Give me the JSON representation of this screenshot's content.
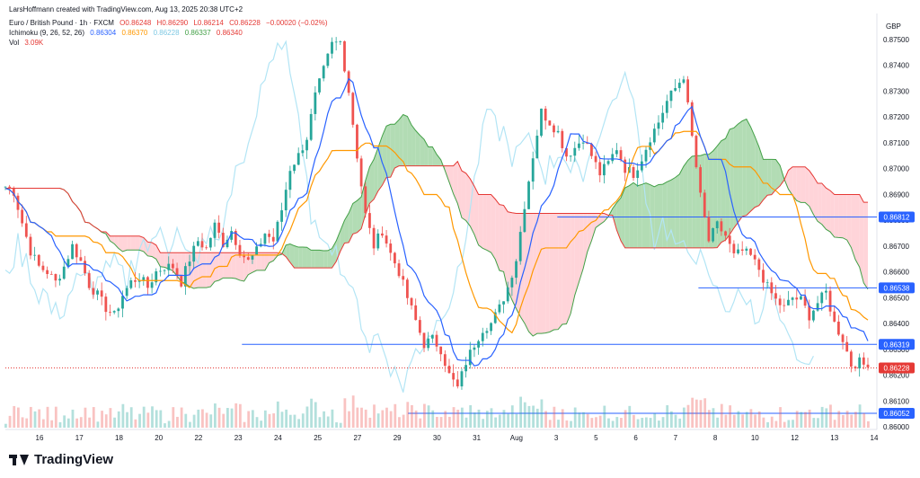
{
  "header": {
    "attribution": "LarsHoffmann created with TradingView.com, Aug 13, 2025 20:38 UTC+2"
  },
  "legend": {
    "symbol": "Euro / British Pound · 1h · FXCM",
    "ohlc": {
      "o": "O0.86248",
      "h": "H0.86290",
      "l": "L0.86214",
      "c": "C0.86228",
      "chg": "−0.00020 (−0.02%)"
    },
    "ichimoku": {
      "label": "Ichimoku (9, 26, 52, 26)",
      "v1": "0.86304",
      "v2": "0.86370",
      "v3": "0.86228",
      "v4": "0.86337",
      "v5": "0.86340"
    },
    "vol": {
      "label": "Vol",
      "value": "3.09K"
    }
  },
  "currency": "GBP",
  "footer": {
    "brand": "TradingView"
  },
  "colors": {
    "up": "#26a69a",
    "down": "#ef5350",
    "tenkan": "#2962ff",
    "kijun": "#ff9800",
    "chikou": "#b3e5f5",
    "spanA": "#43a047",
    "spanB": "#e53935",
    "cloud_up": "#a5d6a7",
    "cloud_down": "#ffcdd2",
    "hline": "#2962ff",
    "price_label": "#e53935"
  },
  "chart_data": {
    "type": "candlestick",
    "symbol": "EURGBP",
    "timeframe": "1h",
    "ylim": [
      0.86,
      0.876
    ],
    "y_ticks": [
      "0.87500",
      "0.87400",
      "0.87300",
      "0.87200",
      "0.87100",
      "0.87000",
      "0.86900",
      "0.86800",
      "0.86700",
      "0.86600",
      "0.86500",
      "0.86400",
      "0.86300",
      "0.86200",
      "0.86100",
      "0.86000"
    ],
    "x_ticks": [
      "16",
      "17",
      "18",
      "20",
      "22",
      "23",
      "24",
      "25",
      "27",
      "29",
      "30",
      "31",
      "Aug",
      "3",
      "5",
      "6",
      "7",
      "8",
      "10",
      "12",
      "13",
      "14"
    ],
    "horizontal_lines": [
      {
        "value": 0.86812,
        "label": "0.86812",
        "from_day_index": 13.3
      },
      {
        "value": 0.86538,
        "label": "0.86538",
        "from_day_index": 16.7
      },
      {
        "value": 0.86319,
        "label": "0.86319",
        "from_day_index": 5.7
      },
      {
        "value": 0.86052,
        "label": "0.86052",
        "from_day_index": 9.7
      }
    ],
    "last_price": {
      "value": 0.86228,
      "label": "0.86228"
    },
    "closes": [
      0.8693,
      0.8691,
      0.8679,
      0.8668,
      0.8662,
      0.866,
      0.8656,
      0.8662,
      0.867,
      0.8664,
      0.8655,
      0.8651,
      0.8646,
      0.8643,
      0.8651,
      0.8656,
      0.8658,
      0.8654,
      0.866,
      0.8662,
      0.8662,
      0.8656,
      0.8665,
      0.8672,
      0.8669,
      0.8678,
      0.8671,
      0.8676,
      0.8668,
      0.8664,
      0.8668,
      0.8675,
      0.8672,
      0.8684,
      0.87,
      0.8705,
      0.8712,
      0.8728,
      0.8738,
      0.8748,
      0.8749,
      0.873,
      0.8705,
      0.8682,
      0.867,
      0.8676,
      0.8667,
      0.866,
      0.865,
      0.8641,
      0.8632,
      0.8634,
      0.863,
      0.862,
      0.8615,
      0.8625,
      0.8632,
      0.8638,
      0.864,
      0.8646,
      0.8654,
      0.8665,
      0.8686,
      0.8705,
      0.8722,
      0.8718,
      0.8714,
      0.8705,
      0.8708,
      0.8712,
      0.8705,
      0.8698,
      0.8702,
      0.8708,
      0.87,
      0.8698,
      0.8704,
      0.8712,
      0.8718,
      0.8726,
      0.8731,
      0.8736,
      0.8712,
      0.8689,
      0.8672,
      0.8678,
      0.8674,
      0.8666,
      0.8668,
      0.8666,
      0.8661,
      0.8654,
      0.8649,
      0.8646,
      0.865,
      0.8649,
      0.8643,
      0.8648,
      0.8652,
      0.864,
      0.8634,
      0.8624,
      0.8625,
      0.8623
    ],
    "volume_note": "volume histogram at bottom, last Vol 3.09K"
  }
}
